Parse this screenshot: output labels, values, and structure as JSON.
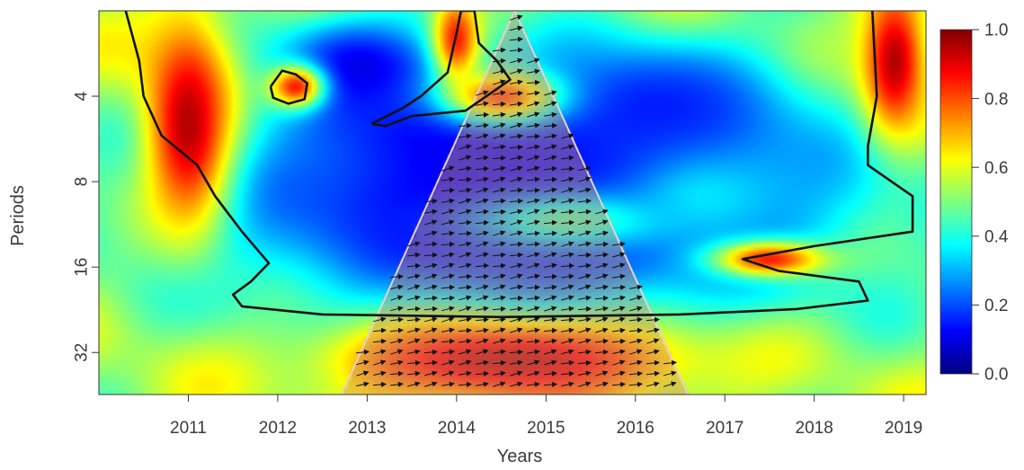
{
  "chart_data": {
    "type": "heatmap",
    "title": "",
    "xlabel": "Years",
    "ylabel": "Periods",
    "x_ticks": [
      "2011",
      "2012",
      "2013",
      "2014",
      "2015",
      "2016",
      "2017",
      "2018",
      "2019"
    ],
    "x_range": [
      2010.0,
      2019.25
    ],
    "y_ticks": [
      "4",
      "8",
      "16",
      "32"
    ],
    "y_tick_values": [
      4,
      8,
      16,
      32
    ],
    "y_scale": "log2",
    "y_range": [
      2,
      45
    ],
    "y_inverted": true,
    "colorbar": {
      "ticks": [
        "0.0",
        "0.2",
        "0.4",
        "0.6",
        "0.8",
        "1.0"
      ],
      "range": [
        0.0,
        1.0
      ],
      "colors": [
        "#00007f",
        "#0000ff",
        "#007fff",
        "#00ffff",
        "#7fff7f",
        "#ffff00",
        "#ff7f00",
        "#ff0000",
        "#7f0000"
      ]
    },
    "blobs": [
      {
        "x": 2014.8,
        "period": 10.0,
        "value": 0.05,
        "sx": 2.6,
        "sy": 0.95
      },
      {
        "x": 2014.3,
        "period": 5.5,
        "value": 0.1,
        "sx": 1.3,
        "sy": 0.5
      },
      {
        "x": 2012.9,
        "period": 3.2,
        "value": 0.1,
        "sx": 0.7,
        "sy": 0.45
      },
      {
        "x": 2016.2,
        "period": 4.5,
        "value": 0.15,
        "sx": 1.1,
        "sy": 0.6
      },
      {
        "x": 2015.3,
        "period": 11.0,
        "value": 0.45,
        "sx": 0.9,
        "sy": 0.25
      },
      {
        "x": 2016.8,
        "period": 9.0,
        "value": 0.35,
        "sx": 0.6,
        "sy": 0.35
      },
      {
        "x": 2012.2,
        "period": 3.7,
        "value": 0.85,
        "sx": 0.22,
        "sy": 0.18
      },
      {
        "x": 2014.5,
        "period": 4.0,
        "value": 0.8,
        "sx": 0.45,
        "sy": 0.22
      },
      {
        "x": 2014.0,
        "period": 2.5,
        "value": 0.85,
        "sx": 0.18,
        "sy": 0.35
      },
      {
        "x": 2017.5,
        "period": 15.0,
        "value": 0.85,
        "sx": 0.45,
        "sy": 0.15
      },
      {
        "x": 2011.0,
        "period": 5.0,
        "value": 0.95,
        "sx": 0.35,
        "sy": 0.9
      },
      {
        "x": 2018.9,
        "period": 3.0,
        "value": 0.95,
        "sx": 0.25,
        "sy": 0.6
      },
      {
        "x": 2014.6,
        "period": 34.0,
        "value": 0.95,
        "sx": 1.4,
        "sy": 0.35
      }
    ],
    "significance_contours": [
      {
        "name": "contour-left-edge",
        "points": [
          [
            2010.3,
            2
          ],
          [
            2010.45,
            3
          ],
          [
            2010.5,
            4
          ],
          [
            2010.7,
            5.5
          ],
          [
            2011.1,
            7
          ],
          [
            2011.3,
            9
          ],
          [
            2011.6,
            12
          ],
          [
            2011.9,
            15.5
          ],
          [
            2011.7,
            18
          ],
          [
            2011.5,
            20
          ],
          [
            2011.6,
            22
          ],
          [
            2012.5,
            23.5
          ],
          [
            2014.5,
            24
          ],
          [
            2016.5,
            23.5
          ],
          [
            2017.8,
            22.5
          ],
          [
            2018.6,
            21
          ],
          [
            2018.5,
            18
          ],
          [
            2017.6,
            16.5
          ],
          [
            2017.2,
            15
          ],
          [
            2018.0,
            13.5
          ],
          [
            2019.1,
            12
          ],
          [
            2019.1,
            9
          ],
          [
            2018.6,
            7
          ],
          [
            2018.6,
            6
          ],
          [
            2018.7,
            4
          ],
          [
            2018.65,
            2
          ]
        ]
      },
      {
        "name": "contour-2012-blob",
        "points": [
          [
            2011.92,
            3.7
          ],
          [
            2012.05,
            3.25
          ],
          [
            2012.2,
            3.35
          ],
          [
            2012.33,
            3.6
          ],
          [
            2012.3,
            4.1
          ],
          [
            2012.12,
            4.25
          ],
          [
            2011.95,
            4.05
          ],
          [
            2011.92,
            3.7
          ]
        ]
      },
      {
        "name": "contour-2014-blob",
        "points": [
          [
            2013.05,
            5.0
          ],
          [
            2013.4,
            4.4
          ],
          [
            2013.6,
            4.0
          ],
          [
            2013.9,
            3.3
          ],
          [
            2014.0,
            2.4
          ],
          [
            2014.05,
            2.0
          ],
          [
            2014.2,
            2.0
          ],
          [
            2014.25,
            2.6
          ],
          [
            2014.45,
            3.0
          ],
          [
            2014.6,
            3.5
          ],
          [
            2014.1,
            4.5
          ],
          [
            2013.5,
            4.7
          ],
          [
            2013.2,
            5.1
          ],
          [
            2013.05,
            5.0
          ]
        ]
      }
    ]
  }
}
